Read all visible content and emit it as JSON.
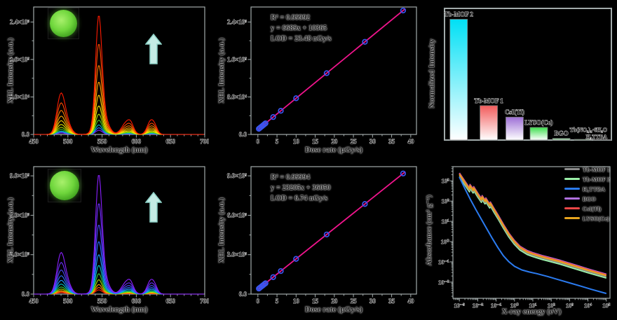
{
  "figure": {
    "background": "#000000"
  },
  "panels": {
    "A": {
      "xlabel": "Wavelength (nm)",
      "ylabel": "XEL Intensity (a.u.)"
    },
    "B": {
      "xlabel": "Dose rate (μGy/s)",
      "ylabel": "XEL Intensity (a.u.)",
      "fit_r2": "R² = 0.99992",
      "fit_eq": "y = 6689x + 10365",
      "fit_lod": "LOD = 23.48 nGy/s"
    },
    "C": {
      "ylabel": "Normalized Intensity"
    },
    "D": {
      "xlabel": "Wavelength (nm)",
      "ylabel": "XEL Intensity (a.u.)"
    },
    "E": {
      "xlabel": "Dose rate (μGy/s)",
      "ylabel": "XEL Intensity (a.u.)",
      "fit_r2": "R² = 0.99994",
      "fit_eq": "y = 23205x + 36050",
      "fit_lod": "LOD = 6.74 nGy/s"
    },
    "F": {
      "xlabel": "X-ray energy (eV)",
      "ylabel": "Absorbance (cm² g⁻¹)"
    }
  },
  "chart_data": [
    {
      "id": "A",
      "type": "line",
      "panel": "top-left",
      "xlabel": "Wavelength (nm)",
      "ylabel": "XEL Intensity (a.u.)",
      "xlim": [
        450,
        700
      ],
      "ylim": [
        0,
        272000
      ],
      "xticks": [
        450,
        500,
        550,
        600,
        650,
        700
      ],
      "x_minor_step": 10,
      "y_minor_step": 40000,
      "yticks": [
        {
          "v": 0,
          "label": "0.0"
        },
        {
          "v": 80000,
          "label": "8.0×10⁴"
        },
        {
          "v": 160000,
          "label": "1.6×10⁵"
        },
        {
          "v": 240000,
          "label": "2.4×10⁵"
        }
      ],
      "emission_peaks_nm": [
        490,
        545,
        586,
        621
      ],
      "peak_max_intensity": 255000,
      "gauss_components": [
        [
          489,
          5.5,
          0.3
        ],
        [
          495.5,
          7,
          0.16
        ],
        [
          545,
          4.5,
          1.0
        ],
        [
          549.5,
          8,
          0.22
        ],
        [
          586,
          7,
          0.12
        ],
        [
          592,
          4,
          0.05
        ],
        [
          621,
          5,
          0.13
        ],
        [
          627.5,
          4,
          0.05
        ]
      ],
      "series_scales": [
        1,
        0.76,
        0.58,
        0.44,
        0.33,
        0.24,
        0.17,
        0.12,
        0.08,
        0.055,
        0.035
      ],
      "series_colors": [
        "#ff1a00",
        "#ff4d00",
        "#ff7c00",
        "#ffa500",
        "#ffd000",
        "#f2ee00",
        "#a8e000",
        "#44cc22",
        "#00c4c4",
        "#2a6cff",
        "#7a1fff"
      ],
      "note": "XEL spectra rise with dose rate; red = highest dose"
    },
    {
      "id": "B",
      "type": "scatter",
      "panel": "top-middle",
      "xlabel": "Dose rate (μGy/s)",
      "ylabel": "XEL Intensity (a.u.)",
      "xlim": [
        -1.8,
        41.5
      ],
      "ylim": [
        0,
        272000
      ],
      "xticks": [
        0,
        5,
        10,
        15,
        20,
        25,
        30,
        35,
        40
      ],
      "x_minor_step": 2.5,
      "y_minor_step": 40000,
      "yticks": [
        {
          "v": 0,
          "label": "0.0"
        },
        {
          "v": 80000,
          "label": "8.0×10⁴"
        },
        {
          "v": 160000,
          "label": "1.6×10⁵"
        },
        {
          "v": 240000,
          "label": "2.4×10⁵"
        }
      ],
      "fit": {
        "slope": 6689,
        "intercept": 10365,
        "r2": 0.99992,
        "lod": "23.48 nGy/s"
      },
      "x": [
        0.25,
        0.5,
        0.8,
        1.1,
        1.4,
        1.7,
        2,
        4,
        6,
        10,
        18,
        28,
        38
      ],
      "line_color": "#f0148c",
      "marker_color": "#3a55f0"
    },
    {
      "id": "C",
      "type": "bar",
      "panel": "top-right",
      "ylabel": "Normalized Intensity",
      "categories": [
        "Tb-MOF 2",
        "Tb-MOF 1",
        "CsI(Tl)",
        "LYSO(Ce)",
        "BGO",
        "Tb(NO₃)₃·6H₂O",
        "H₃TTBA"
      ],
      "values": [
        1.0,
        0.285,
        0.19,
        0.105,
        0.014,
        0.006,
        0.004
      ],
      "bar_colors": [
        "#00e0f5",
        "#f25c5c",
        "#9d6fd6",
        "#3ede4e",
        "#2f9e3f",
        "#3ede4e",
        "#cccccc"
      ],
      "gradient_to": "#ffffff",
      "ylim": [
        0,
        1.09
      ],
      "centers": [
        0.085,
        0.265,
        0.42,
        0.565,
        0.7,
        0.83,
        0.945
      ],
      "bar_width_frac": 0.105
    },
    {
      "id": "D",
      "type": "line",
      "panel": "bottom-left",
      "xlabel": "Wavelength (nm)",
      "ylabel": "XEL Intensity (a.u.)",
      "xlim": [
        450,
        700
      ],
      "ylim": [
        0,
        970000
      ],
      "xticks": [
        450,
        500,
        550,
        600,
        650,
        700
      ],
      "x_minor_step": 10,
      "y_minor_step": 150000,
      "yticks": [
        {
          "v": 0,
          "label": "0.0"
        },
        {
          "v": 300000,
          "label": "3.0×10⁵"
        },
        {
          "v": 600000,
          "label": "6.0×10⁵"
        },
        {
          "v": 900000,
          "label": "9.0×10⁵"
        }
      ],
      "emission_peaks_nm": [
        490,
        545,
        586,
        621
      ],
      "peak_max_intensity": 912000,
      "gauss_components": [
        [
          489,
          5.5,
          0.3
        ],
        [
          495.5,
          7,
          0.16
        ],
        [
          545,
          4.5,
          1.0
        ],
        [
          549.5,
          8,
          0.22
        ],
        [
          586,
          7,
          0.12
        ],
        [
          592,
          4,
          0.05
        ],
        [
          621,
          5,
          0.13
        ],
        [
          627.5,
          4,
          0.05
        ]
      ],
      "series_scales": [
        1,
        0.76,
        0.58,
        0.44,
        0.33,
        0.24,
        0.17,
        0.12,
        0.08,
        0.055,
        0.035
      ],
      "series_colors": [
        "#8a1fff",
        "#6a30ff",
        "#4a4aff",
        "#2a6cff",
        "#1e9bff",
        "#00c8c8",
        "#35cc35",
        "#a8e000",
        "#ffa500",
        "#ff5a00",
        "#ff1a00"
      ],
      "note": "XEL spectra rise with dose rate; purple = highest dose"
    },
    {
      "id": "E",
      "type": "scatter",
      "panel": "bottom-middle",
      "xlabel": "Dose rate (μGy/s)",
      "ylabel": "XEL Intensity (a.u.)",
      "xlim": [
        -1.8,
        41.5
      ],
      "ylim": [
        0,
        970000
      ],
      "xticks": [
        0,
        5,
        10,
        15,
        20,
        25,
        30,
        35,
        40
      ],
      "x_minor_step": 2.5,
      "y_minor_step": 150000,
      "yticks": [
        {
          "v": 0,
          "label": "0.0"
        },
        {
          "v": 300000,
          "label": "3.0×10⁵"
        },
        {
          "v": 600000,
          "label": "6.0×10⁵"
        },
        {
          "v": 900000,
          "label": "9.0×10⁵"
        }
      ],
      "fit": {
        "slope": 23205,
        "intercept": 36050,
        "r2": 0.99994,
        "lod": "6.74 nGy/s"
      },
      "x": [
        0.25,
        0.5,
        0.8,
        1.1,
        1.4,
        1.7,
        2,
        4,
        6,
        10,
        18,
        28,
        38
      ],
      "line_color": "#f0148c",
      "marker_color": "#3a55f0"
    },
    {
      "id": "F",
      "type": "line",
      "panel": "bottom-right",
      "xscale": "log",
      "yscale": "log",
      "xlabel": "X-ray energy (eV)",
      "ylabel": "Absorbance (cm² g⁻¹)",
      "xtick_exponents": [
        -3,
        -2,
        -1,
        0,
        1,
        2,
        3,
        4,
        5
      ],
      "ytick_exponents": [
        3,
        2,
        1,
        0,
        -1,
        -2
      ],
      "xlim_log": [
        -3.35,
        5.2
      ],
      "ylim_log": [
        -2.8,
        3.7
      ],
      "base_curves": {
        "heavy": [
          [
            -3.0,
            3.32
          ],
          [
            -2.8,
            3.05
          ],
          [
            -2.6,
            2.78
          ],
          [
            -2.45,
            2.58
          ],
          [
            -2.42,
            2.75
          ],
          [
            -2.25,
            2.52
          ],
          [
            -2.22,
            2.64
          ],
          [
            -2.0,
            2.32
          ],
          [
            -1.8,
            2.06
          ],
          [
            -1.76,
            2.2
          ],
          [
            -1.6,
            1.98
          ],
          [
            -1.56,
            2.08
          ],
          [
            -1.35,
            1.78
          ],
          [
            -1.31,
            1.88
          ],
          [
            -1.1,
            1.55
          ],
          [
            -0.9,
            1.25
          ],
          [
            -0.6,
            0.78
          ],
          [
            -0.3,
            0.34
          ],
          [
            0.0,
            -0.02
          ],
          [
            0.3,
            -0.3
          ],
          [
            0.7,
            -0.52
          ],
          [
            1.0,
            -0.62
          ],
          [
            1.5,
            -0.76
          ],
          [
            2.0,
            -0.88
          ],
          [
            2.5,
            -1.0
          ],
          [
            3.0,
            -1.14
          ],
          [
            3.5,
            -1.28
          ],
          [
            4.0,
            -1.42
          ],
          [
            4.5,
            -1.55
          ],
          [
            5.0,
            -1.68
          ]
        ],
        "organic": [
          [
            -3.0,
            3.18
          ],
          [
            -2.7,
            2.62
          ],
          [
            -2.4,
            2.08
          ],
          [
            -2.1,
            1.58
          ],
          [
            -1.8,
            1.1
          ],
          [
            -1.5,
            0.62
          ],
          [
            -1.2,
            0.15
          ],
          [
            -0.9,
            -0.3
          ],
          [
            -0.6,
            -0.7
          ],
          [
            -0.3,
            -1.0
          ],
          [
            0.0,
            -1.22
          ],
          [
            0.4,
            -1.4
          ],
          [
            0.8,
            -1.5
          ],
          [
            1.2,
            -1.58
          ],
          [
            1.8,
            -1.72
          ],
          [
            2.4,
            -1.88
          ],
          [
            3.0,
            -2.04
          ],
          [
            3.6,
            -2.2
          ],
          [
            4.2,
            -2.36
          ],
          [
            5.0,
            -2.56
          ]
        ]
      },
      "series": [
        {
          "name": "Tb-MOF 1",
          "color": "#8c8c8c",
          "base": "heavy",
          "offset": -0.05
        },
        {
          "name": "Tb-MOF 2",
          "color": "#9af0a8",
          "base": "heavy",
          "offset": -0.12
        },
        {
          "name": "H₃TTBA",
          "color": "#2b7bf0",
          "base": "organic",
          "offset": 0
        },
        {
          "name": "BGO",
          "color": "#b070e0",
          "base": "heavy",
          "offset": 0.07
        },
        {
          "name": "CsI(Tl)",
          "color": "#ee4646",
          "base": "heavy",
          "offset": 0.04
        },
        {
          "name": "LYSO(Ce)",
          "color": "#e8a51e",
          "base": "heavy",
          "offset": 0
        }
      ],
      "draw_order": [
        1,
        0,
        3,
        4,
        5,
        2
      ],
      "legend_position": "top-right"
    }
  ]
}
